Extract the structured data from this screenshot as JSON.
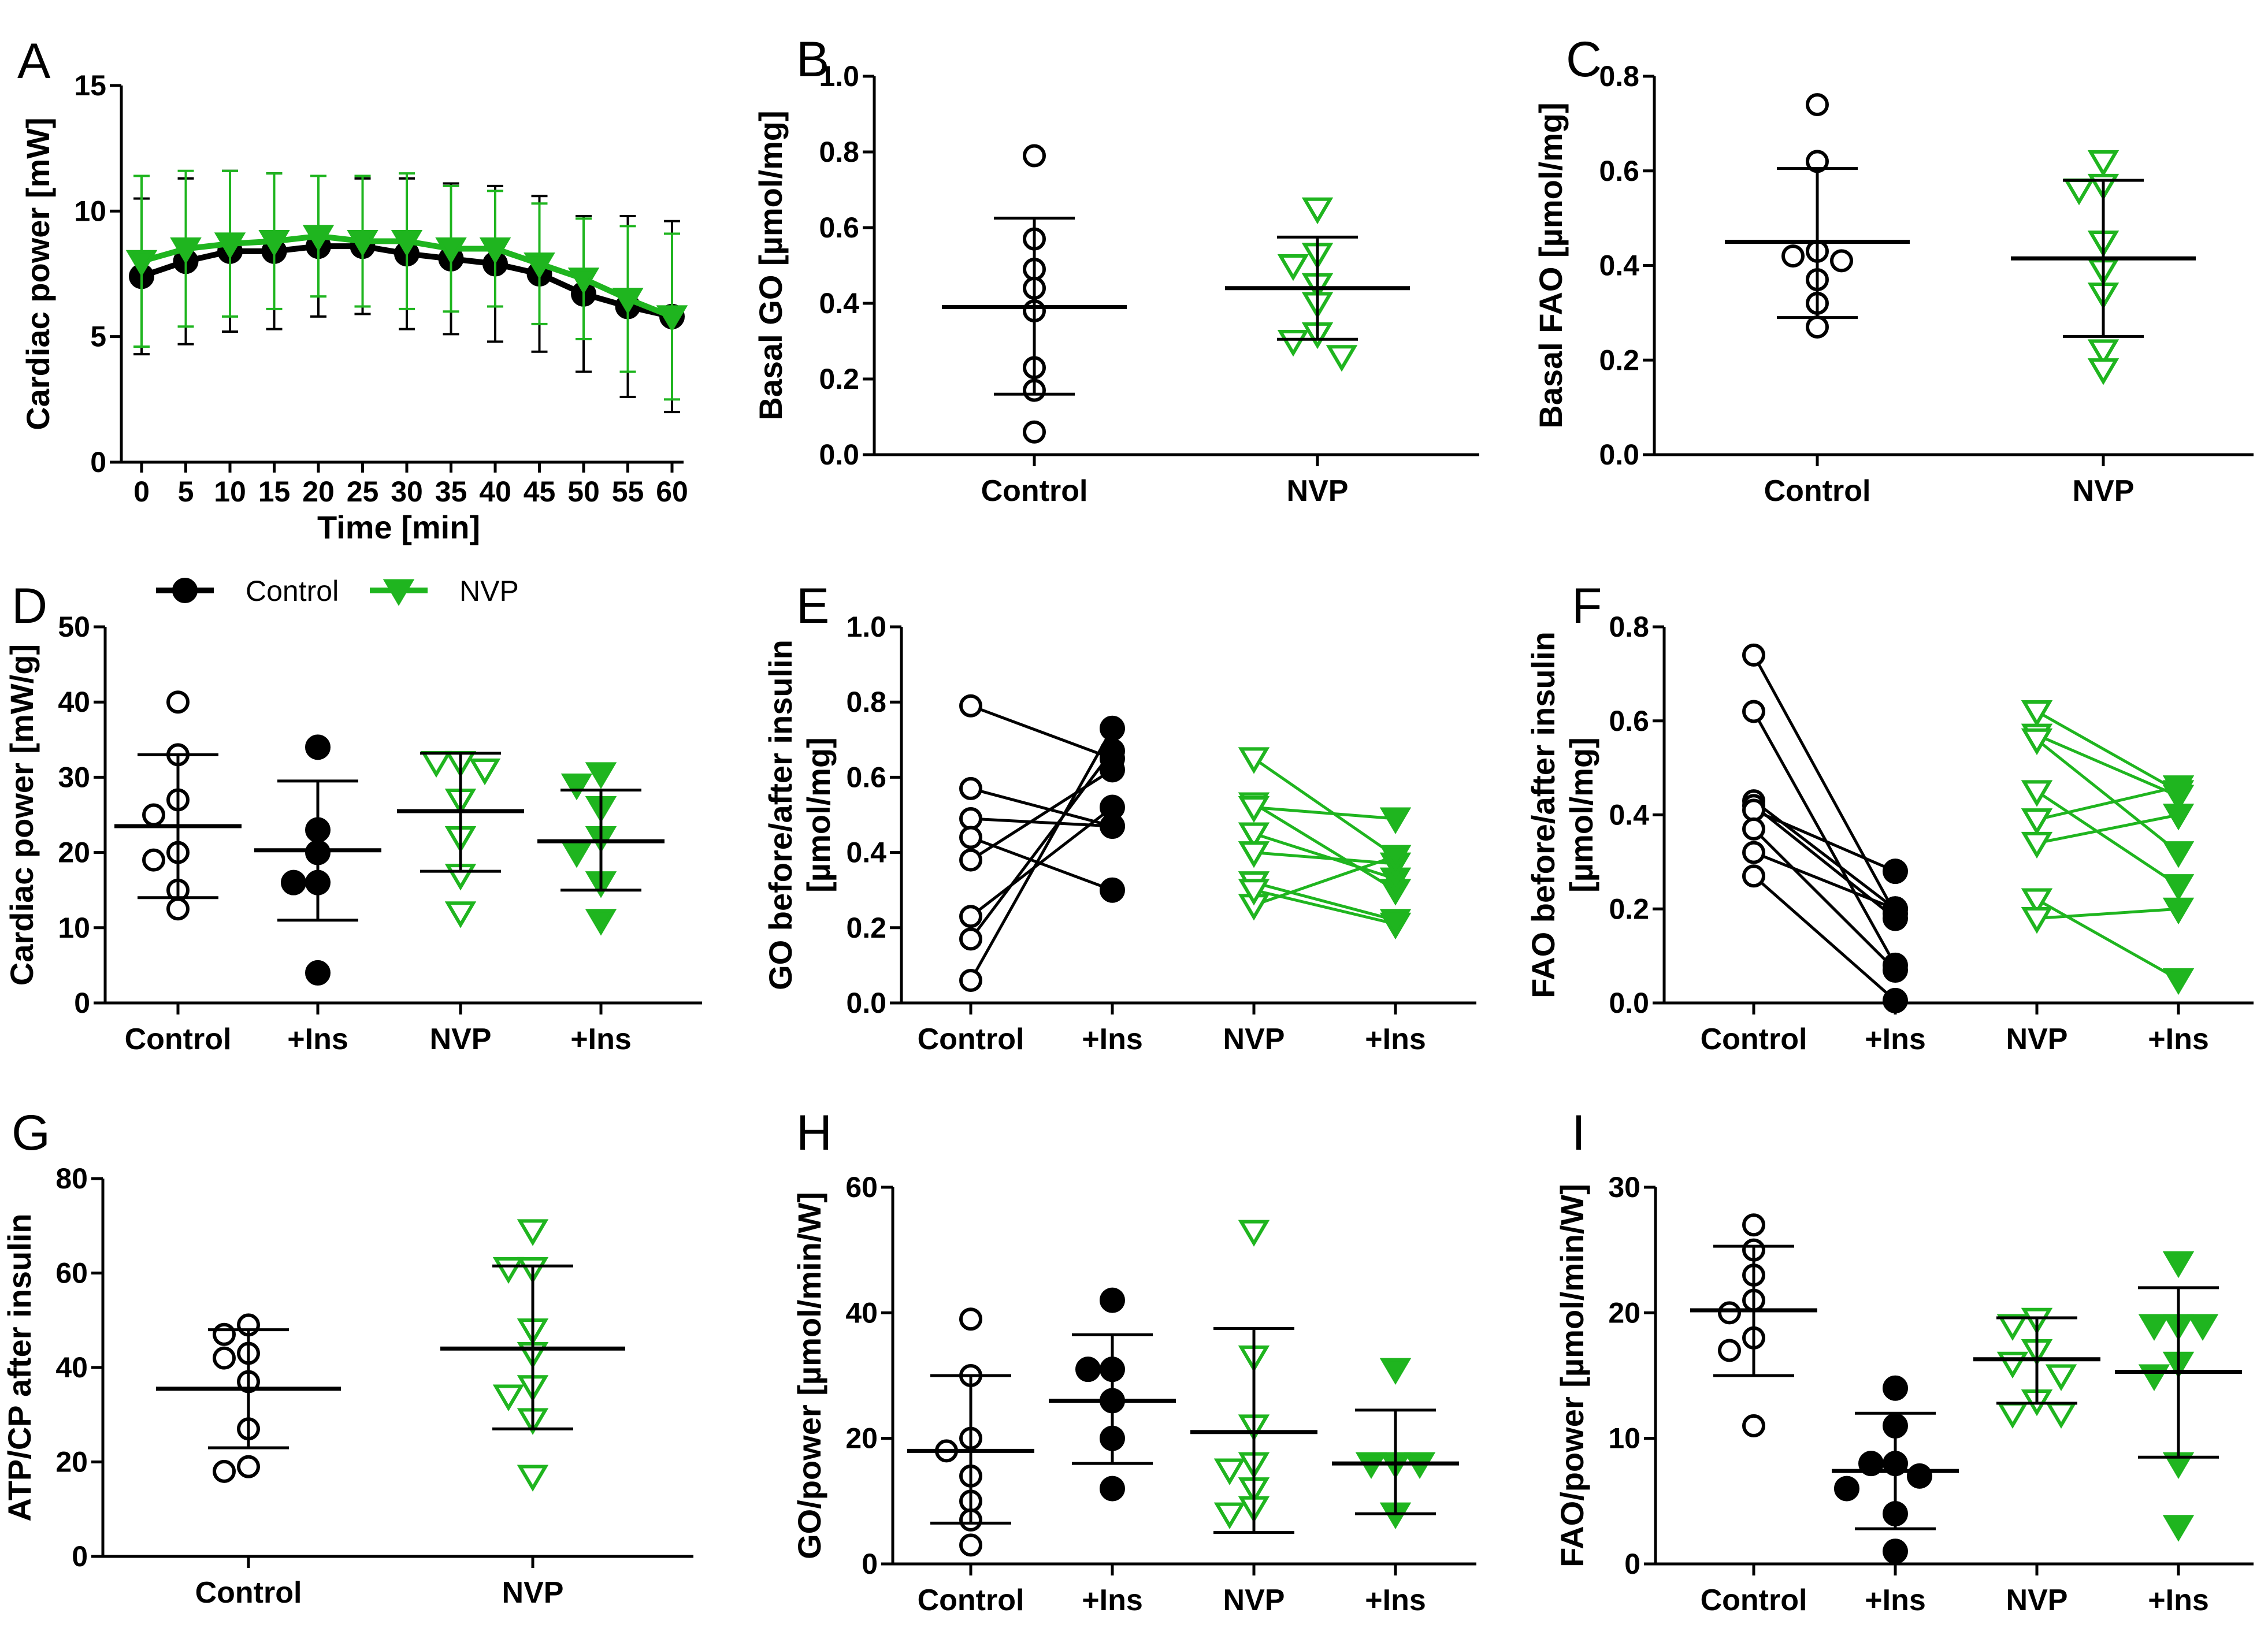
{
  "colors": {
    "control": "#000000",
    "nvp": "#1fb51f"
  },
  "legend": [
    {
      "label": "Control",
      "series": "control"
    },
    {
      "label": "NVP",
      "series": "nvp"
    }
  ],
  "chart_data": [
    {
      "id": "A",
      "type": "line",
      "letter": "A",
      "xlabel": "Time [min]",
      "ylabel": "Cardiac power [mW]",
      "ylim": [
        0,
        15
      ],
      "yticks": [
        0,
        5,
        10,
        15
      ],
      "x": [
        "0",
        "5",
        "10",
        "15",
        "20",
        "25",
        "30",
        "35",
        "40",
        "45",
        "50",
        "55",
        "60"
      ],
      "series": [
        {
          "name": "Control",
          "color": "control",
          "marker": "circle-filled",
          "values": [
            7.4,
            8.0,
            8.4,
            8.4,
            8.6,
            8.6,
            8.3,
            8.1,
            7.9,
            7.5,
            6.7,
            6.2,
            5.8
          ],
          "err": [
            3.1,
            3.3,
            3.2,
            3.1,
            2.8,
            2.7,
            3.0,
            3.0,
            3.1,
            3.1,
            3.1,
            3.6,
            3.8
          ]
        },
        {
          "name": "NVP",
          "color": "nvp",
          "marker": "triangle-filled",
          "values": [
            8.0,
            8.5,
            8.7,
            8.8,
            9.0,
            8.8,
            8.8,
            8.5,
            8.5,
            7.9,
            7.3,
            6.5,
            5.8
          ],
          "err": [
            3.4,
            3.1,
            2.9,
            2.7,
            2.4,
            2.6,
            2.7,
            2.5,
            2.3,
            2.4,
            2.4,
            2.9,
            3.3
          ]
        }
      ]
    },
    {
      "id": "B",
      "type": "scatter",
      "letter": "B",
      "ylabel": "Basal GO [µmol/mg]",
      "ylim": [
        0,
        1.0
      ],
      "yticks": [
        0.0,
        0.2,
        0.4,
        0.6,
        0.8,
        1.0
      ],
      "decimals": 1,
      "categories": [
        "Control",
        "NVP"
      ],
      "groups": [
        {
          "label": "Control",
          "marker": "circle-open",
          "mean": 0.39,
          "sd_low": 0.16,
          "sd_high": 0.625,
          "points": [
            0.79,
            0.57,
            0.49,
            0.44,
            0.38,
            0.23,
            0.17,
            0.06
          ]
        },
        {
          "label": "NVP",
          "marker": "triangle-open",
          "mean": 0.44,
          "sd_low": 0.305,
          "sd_high": 0.575,
          "points": [
            0.65,
            0.53,
            0.5,
            0.45,
            0.4,
            0.32,
            0.3,
            0.26
          ]
        }
      ]
    },
    {
      "id": "C",
      "type": "scatter",
      "letter": "C",
      "ylabel": "Basal FAO [µmol/mg]",
      "ylim": [
        0,
        0.8
      ],
      "yticks": [
        0.0,
        0.2,
        0.4,
        0.6,
        0.8
      ],
      "decimals": 1,
      "categories": [
        "Control",
        "NVP"
      ],
      "groups": [
        {
          "label": "Control",
          "marker": "circle-open",
          "mean": 0.45,
          "sd_low": 0.29,
          "sd_high": 0.605,
          "points": [
            0.74,
            0.62,
            0.43,
            0.42,
            0.41,
            0.37,
            0.32,
            0.27
          ]
        },
        {
          "label": "NVP",
          "marker": "triangle-open",
          "mean": 0.415,
          "sd_low": 0.25,
          "sd_high": 0.58,
          "points": [
            0.62,
            0.57,
            0.56,
            0.45,
            0.39,
            0.34,
            0.22,
            0.18
          ]
        }
      ]
    },
    {
      "id": "D",
      "type": "scatter",
      "letter": "D",
      "ylabel": "Cardiac power [mW/g]",
      "ylim": [
        0,
        50
      ],
      "yticks": [
        0,
        10,
        20,
        30,
        40,
        50
      ],
      "decimals": 0,
      "categories": [
        "Control",
        "+Ins",
        "NVP",
        "+Ins"
      ],
      "groups": [
        {
          "label": "Control",
          "marker": "circle-open",
          "mean": 23.5,
          "sd_low": 14,
          "sd_high": 33,
          "points": [
            40,
            33,
            27,
            25,
            19,
            20,
            15,
            12.5
          ]
        },
        {
          "label": "+Ins",
          "marker": "circle-filled",
          "mean": 20.3,
          "sd_low": 11,
          "sd_high": 29.5,
          "points": [
            34,
            23,
            20,
            16,
            16,
            4
          ]
        },
        {
          "label": "NVP",
          "marker": "triangle-open",
          "mean": 25.5,
          "sd_low": 17.5,
          "sd_high": 33.2,
          "points": [
            32,
            32,
            31,
            27,
            22,
            17,
            12
          ]
        },
        {
          "label": "+Ins",
          "marker": "triangle-filled",
          "mean": 21.5,
          "sd_low": 15,
          "sd_high": 28.3,
          "points": [
            30.5,
            29,
            26,
            22,
            20,
            16,
            11
          ]
        }
      ]
    },
    {
      "id": "E",
      "type": "paired",
      "letter": "E",
      "ylabel": [
        "GO before/after insulin",
        "[µmol/mg]"
      ],
      "ylim": [
        0,
        1.0
      ],
      "yticks": [
        0.0,
        0.2,
        0.4,
        0.6,
        0.8,
        1.0
      ],
      "decimals": 1,
      "categories": [
        "Control",
        "+Ins",
        "NVP",
        "+Ins"
      ],
      "pairs": [
        {
          "color": "control",
          "before": 0.79,
          "after": 0.65
        },
        {
          "color": "control",
          "before": 0.57,
          "after": 0.47
        },
        {
          "color": "control",
          "before": 0.49,
          "after": 0.47
        },
        {
          "color": "control",
          "before": 0.44,
          "after": 0.3
        },
        {
          "color": "control",
          "before": 0.38,
          "after": 0.62
        },
        {
          "color": "control",
          "before": 0.23,
          "after": 0.52
        },
        {
          "color": "control",
          "before": 0.17,
          "after": 0.67
        },
        {
          "color": "control",
          "before": 0.06,
          "after": 0.73
        },
        {
          "color": "nvp",
          "before": 0.65,
          "after": 0.39
        },
        {
          "color": "nvp",
          "before": 0.53,
          "after": 0.3
        },
        {
          "color": "nvp",
          "before": 0.52,
          "after": 0.49
        },
        {
          "color": "nvp",
          "before": 0.45,
          "after": 0.33
        },
        {
          "color": "nvp",
          "before": 0.4,
          "after": 0.37
        },
        {
          "color": "nvp",
          "before": 0.32,
          "after": 0.22
        },
        {
          "color": "nvp",
          "before": 0.26,
          "after": 0.39
        },
        {
          "color": "nvp",
          "before": 0.3,
          "after": 0.21
        }
      ]
    },
    {
      "id": "F",
      "type": "paired",
      "letter": "F",
      "ylabel": [
        "FAO before/after insulin",
        "[µmol/mg]"
      ],
      "ylim": [
        0,
        0.8
      ],
      "yticks": [
        0.0,
        0.2,
        0.4,
        0.6,
        0.8
      ],
      "decimals": 1,
      "categories": [
        "Control",
        "+Ins",
        "NVP",
        "+Ins"
      ],
      "pairs": [
        {
          "color": "control",
          "before": 0.74,
          "after": 0.19
        },
        {
          "color": "control",
          "before": 0.62,
          "after": 0.08
        },
        {
          "color": "control",
          "before": 0.43,
          "after": 0.2
        },
        {
          "color": "control",
          "before": 0.42,
          "after": 0.18
        },
        {
          "color": "control",
          "before": 0.41,
          "after": 0.28
        },
        {
          "color": "control",
          "before": 0.37,
          "after": 0.07
        },
        {
          "color": "control",
          "before": 0.32,
          "after": 0.2
        },
        {
          "color": "control",
          "before": 0.27,
          "after": 0.005
        },
        {
          "color": "nvp",
          "before": 0.62,
          "after": 0.45
        },
        {
          "color": "nvp",
          "before": 0.57,
          "after": 0.44
        },
        {
          "color": "nvp",
          "before": 0.56,
          "after": 0.32
        },
        {
          "color": "nvp",
          "before": 0.45,
          "after": 0.25
        },
        {
          "color": "nvp",
          "before": 0.39,
          "after": 0.46
        },
        {
          "color": "nvp",
          "before": 0.34,
          "after": 0.4
        },
        {
          "color": "nvp",
          "before": 0.22,
          "after": 0.05
        },
        {
          "color": "nvp",
          "before": 0.18,
          "after": 0.2
        }
      ]
    },
    {
      "id": "G",
      "type": "scatter",
      "letter": "G",
      "ylabel": "ATP/CP after insulin",
      "ylim": [
        0,
        80
      ],
      "yticks": [
        0,
        20,
        40,
        60,
        80
      ],
      "decimals": 0,
      "categories": [
        "Control",
        "NVP"
      ],
      "groups": [
        {
          "label": "Control",
          "marker": "circle-open",
          "mean": 35.5,
          "sd_low": 23,
          "sd_high": 48,
          "points": [
            49,
            47,
            43,
            42,
            37,
            27,
            19,
            18
          ]
        },
        {
          "label": "NVP",
          "marker": "triangle-open",
          "mean": 44,
          "sd_low": 27,
          "sd_high": 61.5,
          "points": [
            69,
            61,
            61,
            48,
            43,
            36,
            34,
            29,
            17
          ]
        }
      ]
    },
    {
      "id": "H",
      "type": "scatter",
      "letter": "H",
      "ylabel": "GO/power [µmol/min/W]",
      "ylim": [
        0,
        60
      ],
      "yticks": [
        0,
        20,
        40,
        60
      ],
      "decimals": 0,
      "categories": [
        "Control",
        "+Ins",
        "NVP",
        "+Ins"
      ],
      "groups": [
        {
          "label": "Control",
          "marker": "circle-open",
          "mean": 18,
          "sd_low": 6.5,
          "sd_high": 30,
          "points": [
            39,
            30,
            20,
            18,
            14,
            10,
            7,
            3
          ]
        },
        {
          "label": "+Ins",
          "marker": "circle-filled",
          "mean": 26,
          "sd_low": 16,
          "sd_high": 36.5,
          "points": [
            42,
            31,
            31,
            26,
            20,
            12
          ]
        },
        {
          "label": "NVP",
          "marker": "triangle-open",
          "mean": 21,
          "sd_low": 5,
          "sd_high": 37.5,
          "points": [
            53,
            33,
            22,
            16,
            15,
            12,
            9,
            8
          ]
        },
        {
          "label": "+Ins",
          "marker": "triangle-filled",
          "mean": 16,
          "sd_low": 8,
          "sd_high": 24.5,
          "points": [
            31,
            16,
            16,
            16,
            8
          ]
        }
      ]
    },
    {
      "id": "I",
      "type": "scatter",
      "letter": "I",
      "ylabel": "FAO/power [µmol/min/W]",
      "ylim": [
        0,
        30
      ],
      "yticks": [
        0,
        10,
        20,
        30
      ],
      "decimals": 0,
      "categories": [
        "Control",
        "+Ins",
        "NVP",
        "+Ins"
      ],
      "groups": [
        {
          "label": "Control",
          "marker": "circle-open",
          "mean": 20.2,
          "sd_low": 15,
          "sd_high": 25.3,
          "points": [
            27,
            25,
            23,
            21,
            20,
            18,
            17,
            11
          ]
        },
        {
          "label": "+Ins",
          "marker": "circle-filled",
          "mean": 7.4,
          "sd_low": 2.8,
          "sd_high": 12,
          "points": [
            14,
            11,
            8,
            8,
            7,
            6,
            4,
            1
          ]
        },
        {
          "label": "NVP",
          "marker": "triangle-open",
          "mean": 16.3,
          "sd_low": 12.8,
          "sd_high": 19.6,
          "points": [
            19.5,
            19,
            17,
            16,
            15,
            13,
            12,
            12
          ]
        },
        {
          "label": "+Ins",
          "marker": "triangle-filled",
          "mean": 15.3,
          "sd_low": 8.5,
          "sd_high": 22,
          "points": [
            24,
            19,
            19,
            19,
            16,
            15,
            8,
            3
          ]
        }
      ]
    }
  ]
}
